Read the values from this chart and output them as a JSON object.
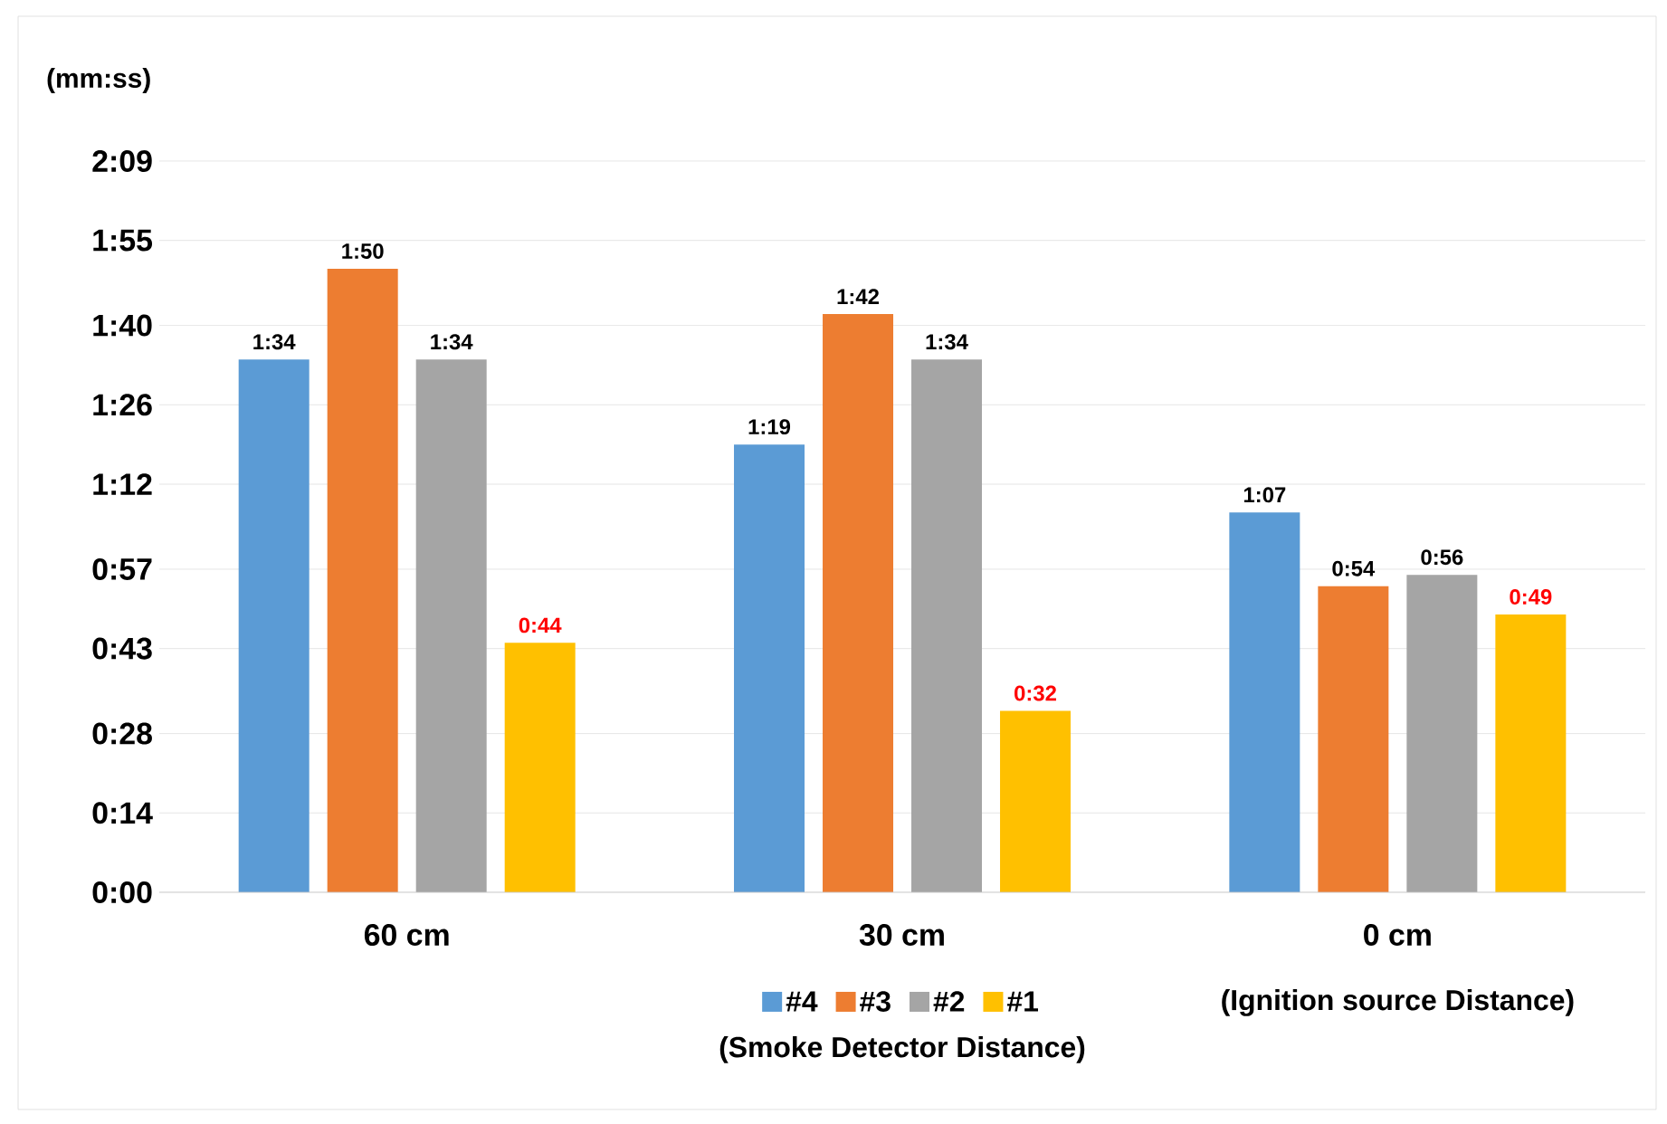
{
  "chart_data": {
    "type": "bar",
    "ylabel": "(mm:ss)",
    "xlabel": "(Ignition source Distance)",
    "legend_title": "(Smoke Detector Distance)",
    "categories": [
      "60 cm",
      "30 cm",
      "0 cm"
    ],
    "series": [
      {
        "name": "#4",
        "color": "#5b9bd5",
        "values": [
          94,
          79,
          67
        ],
        "value_labels": [
          "1:34",
          "1:19",
          "1:07"
        ]
      },
      {
        "name": "#3",
        "color": "#ed7d31",
        "values": [
          110,
          102,
          54
        ],
        "value_labels": [
          "1:50",
          "1:42",
          "0:54"
        ]
      },
      {
        "name": "#2",
        "color": "#a5a5a5",
        "values": [
          94,
          94,
          56
        ],
        "value_labels": [
          "1:34",
          "1:34",
          "0:56"
        ]
      },
      {
        "name": "#1",
        "color": "#ffc000",
        "values": [
          44,
          32,
          49
        ],
        "value_labels": [
          "0:44",
          "0:32",
          "0:49"
        ]
      }
    ],
    "ylim": [
      0,
      129
    ],
    "yticks": [
      {
        "value": 0,
        "label": "0:00"
      },
      {
        "value": 14,
        "label": "0:14"
      },
      {
        "value": 28,
        "label": "0:28"
      },
      {
        "value": 43,
        "label": "0:43"
      },
      {
        "value": 57,
        "label": "0:57"
      },
      {
        "value": 72,
        "label": "1:12"
      },
      {
        "value": 86,
        "label": "1:26"
      },
      {
        "value": 100,
        "label": "1:40"
      },
      {
        "value": 115,
        "label": "1:55"
      },
      {
        "value": 129,
        "label": "2:09"
      }
    ],
    "grid": "y",
    "legend": "bottom"
  }
}
